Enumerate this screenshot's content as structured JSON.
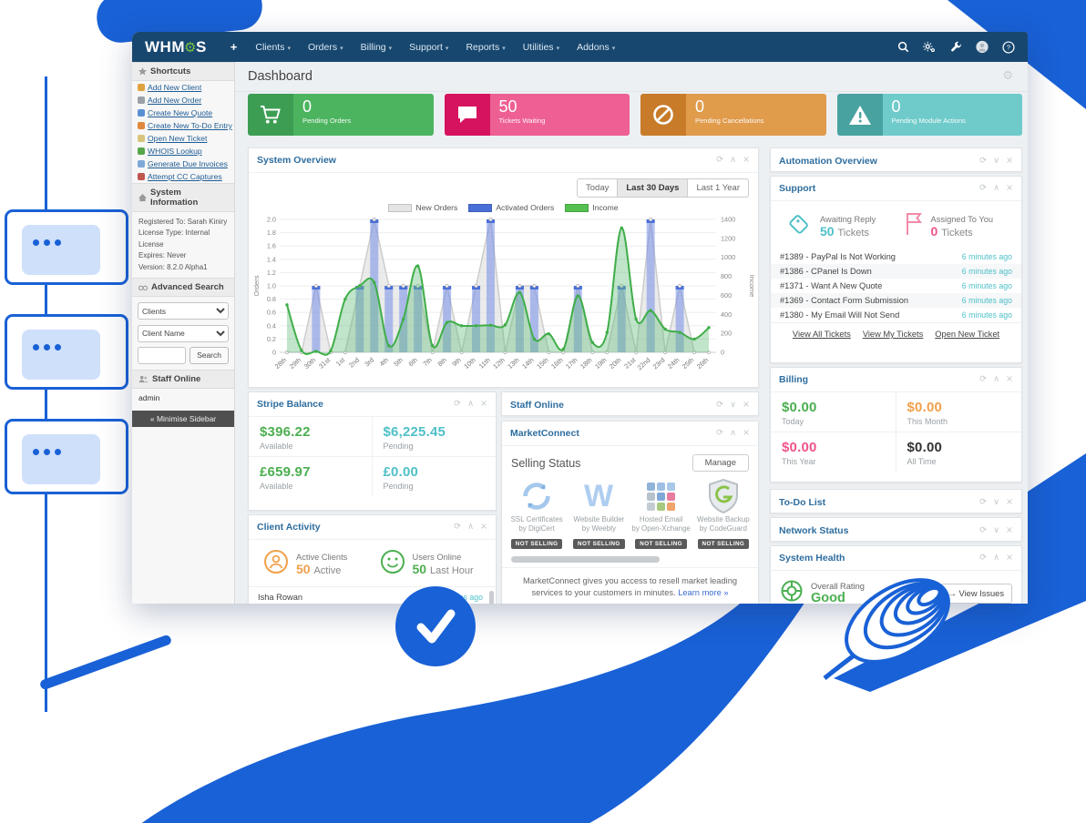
{
  "colors": {
    "accent_blue": "#1961d6",
    "navbar": "#17476f",
    "logo_green": "#7cc242",
    "panel_title": "#2e6d9e",
    "teal": "#4fc0c8",
    "green": "#4caf50",
    "pink": "#f0548c",
    "orange": "#f0a04b",
    "dark": "#333333"
  },
  "icons": {
    "refresh": "⟳",
    "collapse": "∧",
    "expand": "∨",
    "close": "×",
    "gear": "⚙",
    "caret": "▾",
    "check": "✓"
  },
  "navbar": {
    "logo_pre": "WHM",
    "logo_post": "S",
    "plus": "+",
    "menus": [
      {
        "label": "Clients"
      },
      {
        "label": "Orders"
      },
      {
        "label": "Billing"
      },
      {
        "label": "Support"
      },
      {
        "label": "Reports"
      },
      {
        "label": "Utilities"
      },
      {
        "label": "Addons"
      }
    ],
    "right_icons": [
      "search-icon",
      "cogs-icon",
      "wrench-icon",
      "avatar",
      "help-icon"
    ]
  },
  "sidebar": {
    "shortcuts": {
      "title": "Shortcuts",
      "items": [
        {
          "label": "Add New Client",
          "icon": "add-client-icon"
        },
        {
          "label": "Add New Order",
          "icon": "add-order-icon"
        },
        {
          "label": "Create New Quote",
          "icon": "quote-icon"
        },
        {
          "label": "Create New To-Do Entry",
          "icon": "todo-icon"
        },
        {
          "label": "Open New Ticket",
          "icon": "ticket-icon"
        },
        {
          "label": "WHOIS Lookup",
          "icon": "whois-icon"
        },
        {
          "label": "Generate Due Invoices",
          "icon": "invoices-icon"
        },
        {
          "label": "Attempt CC Captures",
          "icon": "cc-icon"
        }
      ]
    },
    "system_information": {
      "title": "System Information",
      "lines": [
        "Registered To: Sarah Kiniry",
        "License Type: Internal License",
        "Expires: Never",
        "Version: 8.2.0 Alpha1"
      ]
    },
    "advanced_search": {
      "title": "Advanced Search",
      "select1": "Clients",
      "select2": "Client Name",
      "search_button": "Search"
    },
    "staff_online": {
      "title": "Staff Online",
      "users": [
        "admin"
      ]
    },
    "minimise_label": "« Minimise Sidebar"
  },
  "content": {
    "title": "Dashboard",
    "stat_cards": [
      {
        "value": "0",
        "label": "Pending Orders",
        "icon": "cart-icon",
        "color_left": "#3d9e53",
        "color_right": "#4cb45f"
      },
      {
        "value": "50",
        "label": "Tickets Waiting",
        "icon": "chat-icon",
        "color_left": "#d6135e",
        "color_right": "#ee5f93"
      },
      {
        "value": "0",
        "label": "Pending Cancellations",
        "icon": "ban-icon",
        "color_left": "#c87b28",
        "color_right": "#e09b4b"
      },
      {
        "value": "0",
        "label": "Pending Module Actions",
        "icon": "warning-icon",
        "color_left": "#48a2a0",
        "color_right": "#6fcbca"
      }
    ]
  },
  "panels": {
    "system_overview": {
      "title": "System Overview",
      "collapsed": false,
      "range_buttons": [
        "Today",
        "Last 30 Days",
        "Last 1 Year"
      ],
      "active_range": "Last 30 Days",
      "legend": [
        {
          "label": "New Orders",
          "color": "#e4e4e4"
        },
        {
          "label": "Activated Orders",
          "color": "#4a6fd8"
        },
        {
          "label": "Income",
          "color": "#53c04f"
        }
      ]
    },
    "automation_overview": {
      "title": "Automation Overview",
      "collapsed": true
    },
    "support": {
      "title": "Support",
      "collapsed": false,
      "stats": [
        {
          "icon": "tag-icon",
          "label": "Awaiting Reply",
          "value": "50",
          "unit": "Tickets",
          "color": "#4fc0c8"
        },
        {
          "icon": "flag-icon",
          "label": "Assigned To You",
          "value": "0",
          "unit": "Tickets",
          "color": "#f0548c"
        }
      ],
      "tickets": [
        {
          "title": "#1389 - PayPal Is Not Working",
          "time": "6 minutes ago"
        },
        {
          "title": "#1386 - CPanel Is Down",
          "time": "6 minutes ago"
        },
        {
          "title": "#1371 - Want A New Quote",
          "time": "6 minutes ago"
        },
        {
          "title": "#1369 - Contact Form Submission",
          "time": "6 minutes ago"
        },
        {
          "title": "#1380 - My Email Will Not Send",
          "time": "6 minutes ago"
        }
      ],
      "links": [
        "View All Tickets",
        "View My Tickets",
        "Open New Ticket"
      ]
    },
    "billing": {
      "title": "Billing",
      "collapsed": false,
      "cells": [
        {
          "value": "$0.00",
          "label": "Today",
          "color": "#4caf50"
        },
        {
          "value": "$0.00",
          "label": "This Month",
          "color": "#f0a04b"
        },
        {
          "value": "$0.00",
          "label": "This Year",
          "color": "#f0548c"
        },
        {
          "value": "$0.00",
          "label": "All Time",
          "color": "#333333"
        }
      ]
    },
    "todo": {
      "title": "To-Do List",
      "collapsed": true
    },
    "network": {
      "title": "Network Status",
      "collapsed": true
    },
    "system_health": {
      "title": "System Health",
      "collapsed": false,
      "label": "Overall Rating",
      "value": "Good",
      "button": "→ View Issues"
    },
    "stripe": {
      "title": "Stripe Balance",
      "collapsed": false,
      "cells": [
        {
          "value": "$396.22",
          "label": "Available",
          "color": "#4caf50"
        },
        {
          "value": "$6,225.45",
          "label": "Pending",
          "color": "#4fc0c8"
        },
        {
          "value": "£659.97",
          "label": "Available",
          "color": "#4caf50"
        },
        {
          "value": "£0.00",
          "label": "Pending",
          "color": "#4fc0c8"
        }
      ]
    },
    "client_activity": {
      "title": "Client Activity",
      "collapsed": false,
      "stats": [
        {
          "icon": "user-circle-icon",
          "label": "Active Clients",
          "value": "50",
          "unit": "Active",
          "color": "#f0a04b"
        },
        {
          "icon": "smiley-icon",
          "label": "Users Online",
          "value": "50",
          "unit": "Last Hour",
          "color": "#4caf50"
        }
      ],
      "rows": [
        {
          "name": "Isha Rowan",
          "time": "6 minutes ago"
        }
      ]
    },
    "staff_online": {
      "title": "Staff Online",
      "collapsed": true
    },
    "marketconnect": {
      "title": "MarketConnect",
      "collapsed": false,
      "heading": "Selling Status",
      "manage_button": "Manage",
      "services": [
        {
          "name": "SSL Certificates",
          "by": "by DigiCert",
          "icon": "digicert-icon",
          "badge": "NOT SELLING"
        },
        {
          "name": "Website Builder",
          "by": "by Weebly",
          "icon": "weebly-icon",
          "badge": "NOT SELLING"
        },
        {
          "name": "Hosted Email",
          "by": "by Open-Xchange",
          "icon": "openxchange-icon",
          "badge": "NOT SELLING"
        },
        {
          "name": "Website Backup",
          "by": "by CodeGuard",
          "icon": "codeguard-icon",
          "badge": "NOT SELLING"
        }
      ],
      "ox_colors": [
        "#8fb3d9",
        "#9fc0e4",
        "#aac8e8",
        "#b7c3cc",
        "#7fa8d9",
        "#e87da0",
        "#c3ccd3",
        "#a8c97f",
        "#f0a36b"
      ],
      "description": "MarketConnect gives you access to resell market leading services to your customers in minutes.",
      "learn_more": "Learn more »"
    }
  },
  "chart_data": {
    "type": "area",
    "title": "System Overview",
    "x": [
      "28th",
      "29th",
      "30th",
      "31st",
      "1st",
      "2nd",
      "3rd",
      "4th",
      "5th",
      "6th",
      "7th",
      "8th",
      "9th",
      "10th",
      "11th",
      "12th",
      "13th",
      "14th",
      "15th",
      "16th",
      "17th",
      "18th",
      "19th",
      "20th",
      "21st",
      "22nd",
      "23rd",
      "24th",
      "25th",
      "26th"
    ],
    "series": [
      {
        "name": "New Orders",
        "type": "area",
        "axis": "left",
        "color": "#cccccc",
        "fill": "rgba(218,218,218,0.55)",
        "values": [
          0,
          0,
          1,
          0,
          0,
          1,
          2,
          1,
          1,
          1,
          0,
          1,
          0,
          1,
          2,
          0,
          1,
          1,
          0,
          0,
          1,
          0,
          0,
          1,
          0,
          2,
          0,
          1,
          0,
          0
        ]
      },
      {
        "name": "Activated Orders",
        "type": "bar",
        "axis": "left",
        "color": "#4a6fd8",
        "fill": "rgba(105,134,232,0.5)",
        "values": [
          0,
          0,
          1,
          0,
          0,
          1,
          2,
          1,
          1,
          1,
          0,
          1,
          0,
          1,
          2,
          0,
          1,
          1,
          0,
          0,
          1,
          0,
          0,
          1,
          0,
          2,
          0,
          1,
          0,
          0
        ]
      },
      {
        "name": "Income",
        "type": "line",
        "axis": "right",
        "color": "#3fae49",
        "fill": "rgba(99,190,123,0.4)",
        "values": [
          500,
          20,
          10,
          15,
          560,
          700,
          735,
          70,
          350,
          910,
          70,
          315,
          280,
          280,
          285,
          290,
          630,
          140,
          195,
          35,
          595,
          105,
          210,
          1310,
          350,
          440,
          245,
          210,
          140,
          260
        ]
      }
    ],
    "ylabel_left": "Orders",
    "ylabel_right": "Income",
    "ylim_left": [
      0,
      2.0
    ],
    "yticks_left": [
      0,
      0.2,
      0.4,
      0.6,
      0.8,
      1.0,
      1.2,
      1.4,
      1.6,
      1.8,
      2.0
    ],
    "ylim_right": [
      0,
      1400
    ],
    "yticks_right": [
      0,
      200,
      400,
      600,
      800,
      1000,
      1200,
      1400
    ],
    "grid": true,
    "legend_position": "top"
  }
}
